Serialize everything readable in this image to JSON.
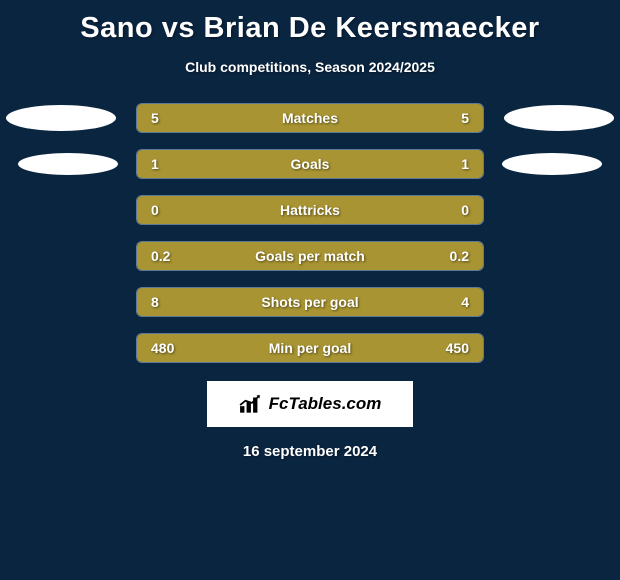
{
  "background_color": "#0a2540",
  "text_color": "#ffffff",
  "title": "Sano vs Brian De Keersmaecker",
  "title_fontsize": 29,
  "subtitle": "Club competitions, Season 2024/2025",
  "subtitle_fontsize": 14,
  "bar_fill_color": "#a89432",
  "bar_border_color": "#5d7a9a",
  "ellipse_color": "#ffffff",
  "stats": [
    {
      "label": "Matches",
      "left_val": "5",
      "right_val": "5",
      "left_pct": 50,
      "right_pct": 50,
      "show_ellipses": true,
      "ellipse_class": ""
    },
    {
      "label": "Goals",
      "left_val": "1",
      "right_val": "1",
      "left_pct": 50,
      "right_pct": 50,
      "show_ellipses": true,
      "ellipse_class": "pad"
    },
    {
      "label": "Hattricks",
      "left_val": "0",
      "right_val": "0",
      "left_pct": 50,
      "right_pct": 50,
      "show_ellipses": false,
      "ellipse_class": ""
    },
    {
      "label": "Goals per match",
      "left_val": "0.2",
      "right_val": "0.2",
      "left_pct": 50,
      "right_pct": 50,
      "show_ellipses": false,
      "ellipse_class": ""
    },
    {
      "label": "Shots per goal",
      "left_val": "8",
      "right_val": "4",
      "left_pct": 50,
      "right_pct": 50,
      "show_ellipses": false,
      "ellipse_class": ""
    },
    {
      "label": "Min per goal",
      "left_val": "480",
      "right_val": "450",
      "left_pct": 50,
      "right_pct": 50,
      "show_ellipses": false,
      "ellipse_class": ""
    }
  ],
  "branding": "FcTables.com",
  "date": "16 september 2024"
}
